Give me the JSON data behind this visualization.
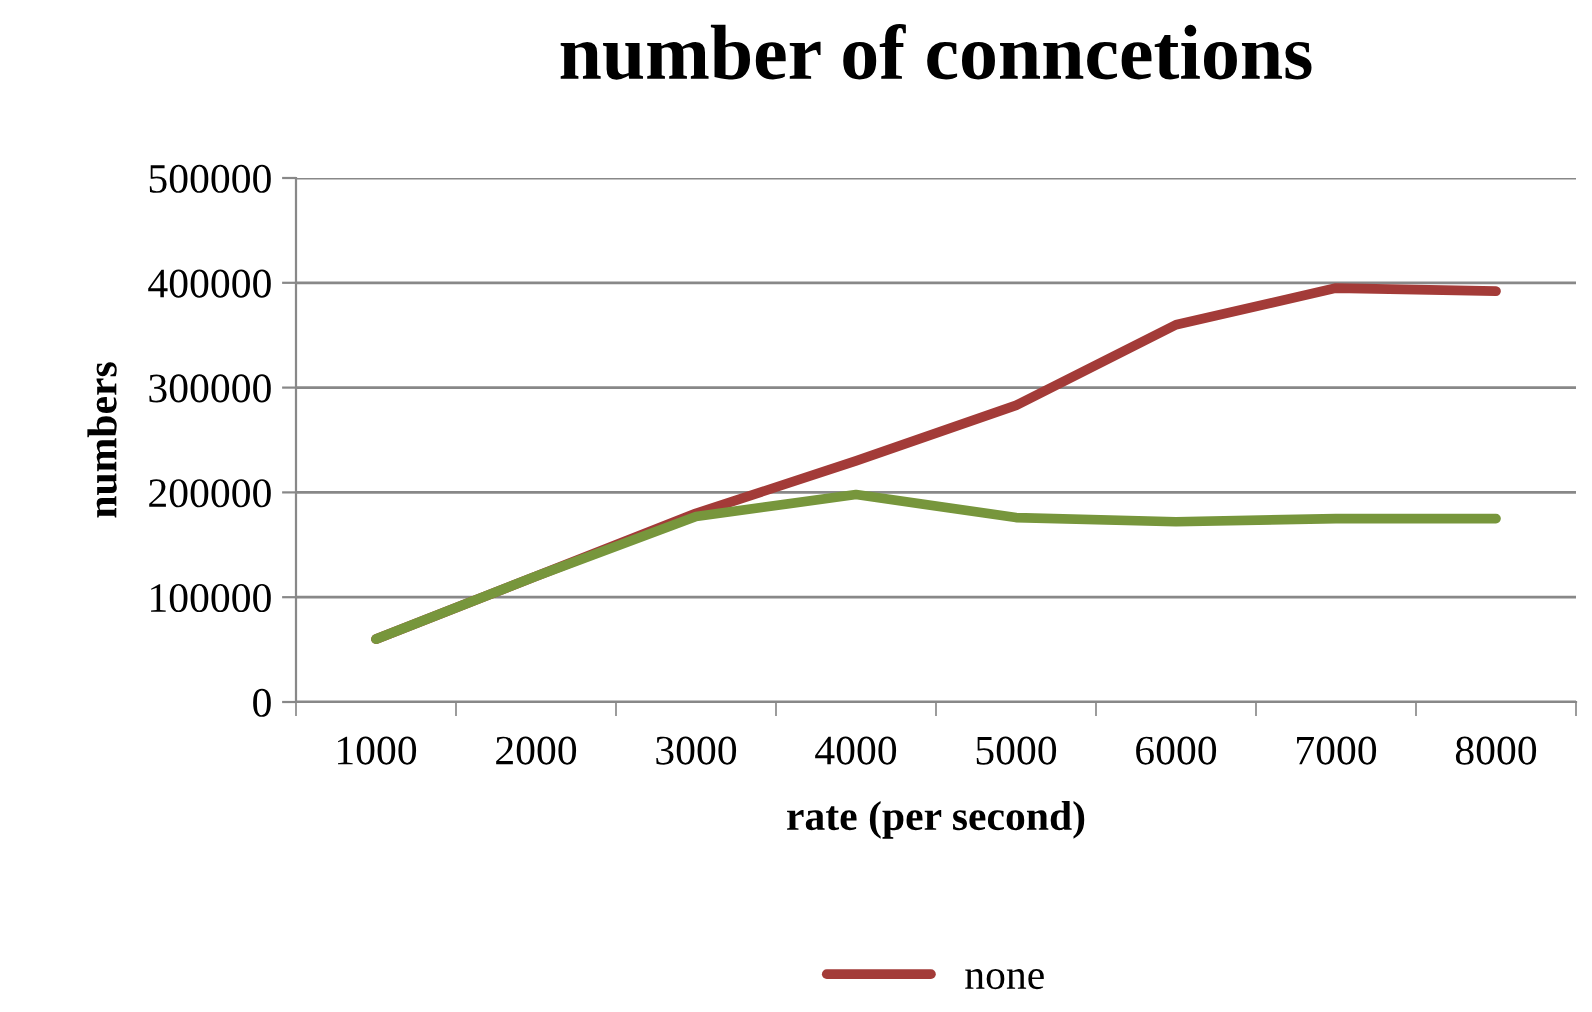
{
  "chart_data": {
    "type": "line",
    "title": "number of conncetions",
    "xlabel": "rate (per second)",
    "ylabel": "numbers",
    "categories": [
      "1000",
      "2000",
      "3000",
      "4000",
      "5000",
      "6000",
      "7000",
      "8000"
    ],
    "series": [
      {
        "name": "none",
        "color": "#a33b38",
        "values": [
          60000,
          120000,
          180000,
          230000,
          283000,
          360000,
          395000,
          392000
        ]
      },
      {
        "color": "#77963c",
        "values": [
          60000,
          120000,
          177000,
          198000,
          176000,
          172000,
          175000,
          175000
        ]
      }
    ],
    "ylim": [
      0,
      500000
    ],
    "yticks": [
      0,
      100000,
      200000,
      300000,
      400000,
      500000
    ],
    "grid": "y",
    "legend": "bottom",
    "marker": "none",
    "line_style": "solid"
  }
}
